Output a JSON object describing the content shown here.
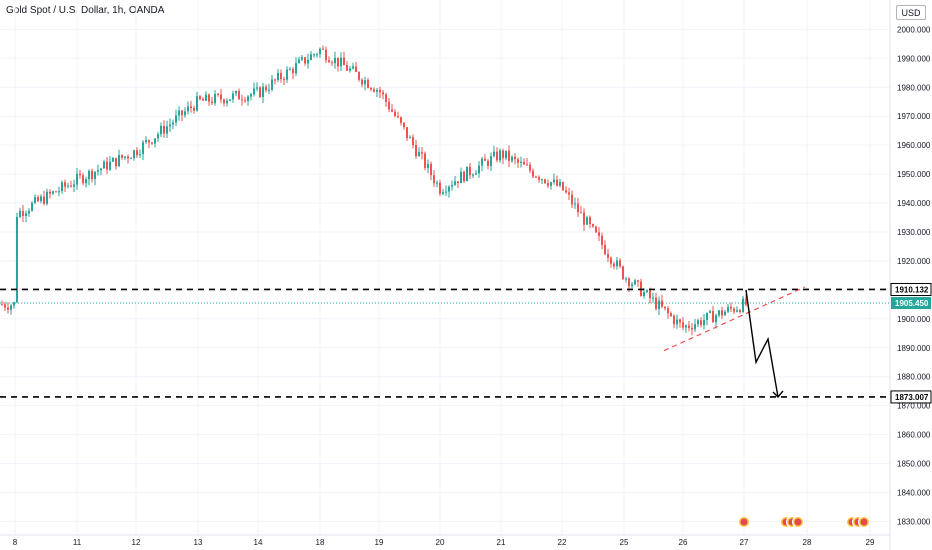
{
  "header": {
    "title": "Gold Spot / U.S. Dollar, 1h, OANDA",
    "currency": "USD"
  },
  "colors": {
    "up": "#26a69a",
    "down": "#ef5350",
    "grid": "#f0f3fa",
    "axis_text": "#131722",
    "last_price": "#26a69a",
    "level_line": "#000000",
    "trend_line": "#ef5350"
  },
  "chart_data": {
    "type": "candlestick",
    "ylim": [
      1826,
      2006
    ],
    "y_ticks": [
      "2000.000",
      "1990.000",
      "1980.000",
      "1970.000",
      "1960.000",
      "1950.000",
      "1940.000",
      "1930.000",
      "1920.000",
      "1910.000",
      "1900.000",
      "1890.000",
      "1880.000",
      "1870.000",
      "1860.000",
      "1850.000",
      "1840.000",
      "1830.000"
    ],
    "x_ticks": [
      "8",
      "11",
      "12",
      "13",
      "14",
      "18",
      "19",
      "20",
      "21",
      "22",
      "25",
      "26",
      "27",
      "28",
      "29"
    ],
    "price_path": [
      {
        "day": "8",
        "price": 1936
      },
      {
        "day": "11",
        "price": 1948
      },
      {
        "day": "12",
        "price": 1958
      },
      {
        "day": "13",
        "price": 1975
      },
      {
        "day": "14",
        "price": 1978
      },
      {
        "day": "18",
        "price": 1993
      },
      {
        "day": "19",
        "price": 1979
      },
      {
        "day": "20",
        "price": 1945
      },
      {
        "day": "21",
        "price": 1957
      },
      {
        "day": "22",
        "price": 1945
      },
      {
        "day": "25",
        "price": 1915
      },
      {
        "day": "26",
        "price": 1897
      },
      {
        "day": "27",
        "price": 1905
      }
    ],
    "levels": [
      {
        "price": 1910.132,
        "label": "1910.132",
        "style": "dashed"
      },
      {
        "price": 1873.007,
        "label": "1873.007",
        "style": "dashed"
      }
    ],
    "last_price": {
      "price": 1905.45,
      "label": "1905.450"
    },
    "trendline": {
      "from": {
        "day": "25",
        "price": 1889
      },
      "to": {
        "day": "28",
        "price": 1911
      }
    },
    "projection": [
      {
        "day": "27",
        "price": 1910
      },
      {
        "day": "27",
        "price": 1885
      },
      {
        "day": "27",
        "price": 1893
      },
      {
        "day": "27",
        "price": 1873
      }
    ]
  }
}
